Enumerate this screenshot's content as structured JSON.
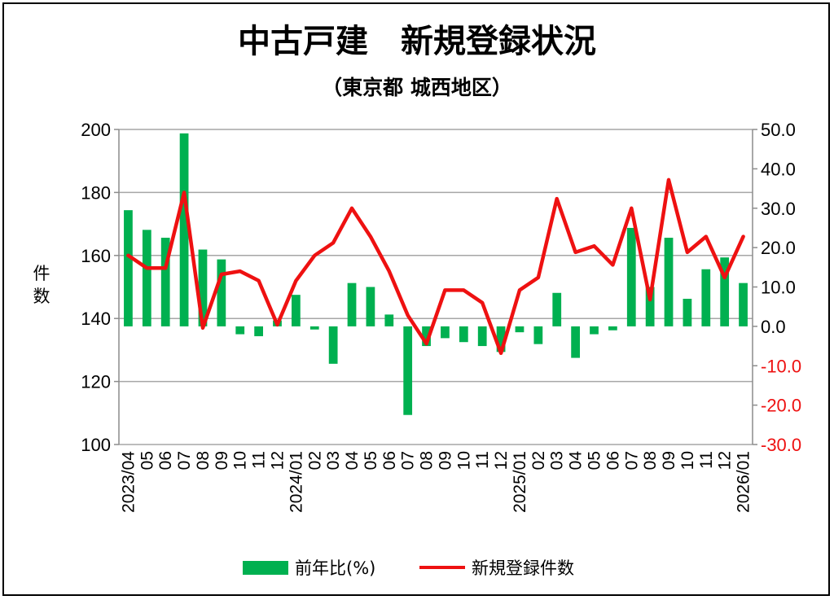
{
  "chart_data": {
    "type": "bar+line",
    "title": "中古戸建　新規登録状況",
    "subtitle": "（東京都 城西地区）",
    "ylabel_left": "件数",
    "left_axis": {
      "ylim": [
        100,
        200
      ],
      "ticks": [
        "200",
        "180",
        "160",
        "140",
        "120",
        "100"
      ]
    },
    "right_axis": {
      "ylim": [
        -30,
        50
      ],
      "ticks": [
        "50.0",
        "40.0",
        "30.0",
        "20.0",
        "10.0",
        "0.0",
        "-10.0",
        "-20.0",
        "-30.0"
      ]
    },
    "categories": [
      "2023/04",
      "05",
      "06",
      "07",
      "08",
      "09",
      "10",
      "11",
      "12",
      "2024/01",
      "02",
      "03",
      "04",
      "05",
      "06",
      "07",
      "08",
      "09",
      "10",
      "11",
      "12",
      "2025/01",
      "02",
      "03",
      "04",
      "05",
      "06",
      "07",
      "08",
      "09",
      "10",
      "11",
      "12",
      "2026/01"
    ],
    "grid": "horizontal",
    "series": [
      {
        "name": "前年比(%)",
        "type": "bar",
        "axis": "right",
        "color": "#00b050",
        "values": [
          29.5,
          24.5,
          22.5,
          49.0,
          19.5,
          17.0,
          -2.0,
          -2.5,
          1.5,
          8.0,
          -0.8,
          -9.5,
          11.0,
          10.0,
          3.0,
          -22.5,
          -5.0,
          -3.0,
          -4.0,
          -5.0,
          -6.5,
          -1.5,
          -4.5,
          8.5,
          -8.0,
          -2.0,
          -1.0,
          25.0,
          10.0,
          22.5,
          7.0,
          14.5,
          17.5,
          11.0
        ]
      },
      {
        "name": "新規登録件数",
        "type": "line",
        "axis": "left",
        "color": "#ee1111",
        "values": [
          160,
          156,
          156,
          180,
          137,
          154,
          155,
          152,
          138,
          152,
          160,
          164,
          175,
          166,
          155,
          141,
          132,
          149,
          149,
          145,
          129,
          149,
          153,
          178,
          161,
          163,
          157,
          175,
          146,
          184,
          161,
          166,
          153,
          166
        ]
      }
    ],
    "legend_position": "bottom"
  }
}
